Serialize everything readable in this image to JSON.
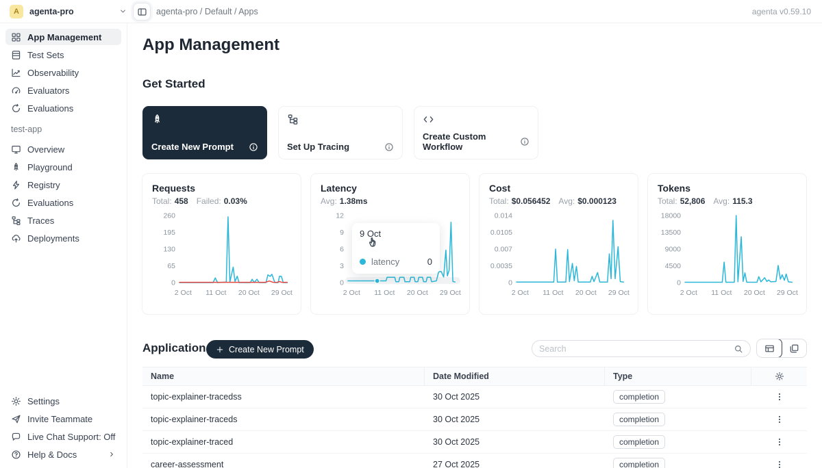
{
  "colors": {
    "accent": "#2bb7d9",
    "danger": "#e8473f",
    "navy": "#1c2b3a",
    "avatar_bg": "#f9e7a0"
  },
  "topbar": {
    "workspace": "agenta-pro",
    "avatar_initial": "A",
    "breadcrumb": "agenta-pro / Default / Apps",
    "version": "agenta v0.59.10"
  },
  "sidebar": {
    "main_items": [
      {
        "icon": "grid",
        "label": "App Management",
        "active": true
      },
      {
        "icon": "rows",
        "label": "Test Sets",
        "active": false
      },
      {
        "icon": "chart",
        "label": "Observability",
        "active": false
      },
      {
        "icon": "gauge",
        "label": "Evaluators",
        "active": false
      },
      {
        "icon": "refresh",
        "label": "Evaluations",
        "active": false
      }
    ],
    "project_label": "test-app",
    "project_items": [
      {
        "icon": "monitor",
        "label": "Overview"
      },
      {
        "icon": "rocket",
        "label": "Playground"
      },
      {
        "icon": "bolt",
        "label": "Registry"
      },
      {
        "icon": "refresh",
        "label": "Evaluations"
      },
      {
        "icon": "tree",
        "label": "Traces"
      },
      {
        "icon": "cloud-up",
        "label": "Deployments"
      }
    ],
    "footer_items": [
      {
        "icon": "gear",
        "label": "Settings"
      },
      {
        "icon": "send",
        "label": "Invite Teammate"
      },
      {
        "icon": "chat",
        "label": "Live Chat Support: Off"
      },
      {
        "icon": "help",
        "label": "Help & Docs",
        "trailing": "chevron-right"
      }
    ]
  },
  "page": {
    "title": "App Management",
    "get_started": {
      "title": "Get Started",
      "cards": [
        {
          "icon": "rocket",
          "label": "Create New Prompt",
          "dark": true
        },
        {
          "icon": "tree",
          "label": "Set Up Tracing",
          "dark": false
        },
        {
          "icon": "code",
          "label": "Create Custom Workflow",
          "dark": false
        }
      ]
    }
  },
  "tooltip": {
    "date": "9 Oct",
    "series": "latency",
    "value": "0"
  },
  "chart_data": [
    {
      "id": "requests",
      "type": "line",
      "title": "Requests",
      "stats": [
        {
          "label": "Total:",
          "value": "458"
        },
        {
          "label": "Failed:",
          "value": "0.03%"
        }
      ],
      "ymax": 260,
      "yticks": [
        "260",
        "195",
        "130",
        "65",
        "0"
      ],
      "xticks": [
        {
          "day": 2,
          "label": "2 Oct"
        },
        {
          "day": 11,
          "label": "11 Oct"
        },
        {
          "day": 20,
          "label": "20 Oct"
        },
        {
          "day": 29,
          "label": "29 Oct"
        }
      ],
      "series": [
        {
          "name": "requests",
          "color": "#2bb7d9",
          "points": [
            [
              1,
              0
            ],
            [
              10.2,
              0
            ],
            [
              10.8,
              18
            ],
            [
              11.4,
              0
            ],
            [
              13.8,
              2
            ],
            [
              14.3,
              255
            ],
            [
              14.8,
              2
            ],
            [
              15.7,
              60
            ],
            [
              16.2,
              4
            ],
            [
              16.8,
              25
            ],
            [
              17.3,
              0
            ],
            [
              20.4,
              0
            ],
            [
              20.9,
              13
            ],
            [
              21.5,
              0
            ],
            [
              22.2,
              13
            ],
            [
              22.8,
              0
            ],
            [
              24.7,
              0
            ],
            [
              25.2,
              30
            ],
            [
              25.8,
              24
            ],
            [
              26.3,
              32
            ],
            [
              27.1,
              0
            ],
            [
              28,
              0
            ],
            [
              28.4,
              25
            ],
            [
              28.9,
              24
            ],
            [
              29.4,
              0
            ],
            [
              30.5,
              0
            ]
          ]
        },
        {
          "name": "failed",
          "color": "#e8473f",
          "points": [
            [
              1,
              1
            ],
            [
              24.5,
              1
            ],
            [
              25.6,
              6
            ],
            [
              26.6,
              1
            ],
            [
              27.8,
              1
            ],
            [
              28.4,
              4
            ],
            [
              29,
              1
            ],
            [
              30.5,
              1
            ]
          ]
        }
      ]
    },
    {
      "id": "latency",
      "type": "line",
      "title": "Latency",
      "stats": [
        {
          "label": "Avg:",
          "value": "1.38ms"
        }
      ],
      "ymax": 12,
      "yticks": [
        "12",
        "9",
        "6",
        "3",
        "0"
      ],
      "xticks": [
        {
          "day": 2,
          "label": "2 Oct"
        },
        {
          "day": 11,
          "label": "11 Oct"
        },
        {
          "day": 20,
          "label": "20 Oct"
        },
        {
          "day": 29,
          "label": "29 Oct"
        }
      ],
      "hover_band": true,
      "marker": {
        "day": 9,
        "value": 0.3
      },
      "series": [
        {
          "name": "latency",
          "color": "#2bb7d9",
          "points": [
            [
              1,
              0.3
            ],
            [
              9,
              0.3
            ],
            [
              11.4,
              0.3
            ],
            [
              11.7,
              0.95
            ],
            [
              13.8,
              0.95
            ],
            [
              14.1,
              0.15
            ],
            [
              14.9,
              0.15
            ],
            [
              15.2,
              0.95
            ],
            [
              16.3,
              0.95
            ],
            [
              16.6,
              0.15
            ],
            [
              17.9,
              0.15
            ],
            [
              18.2,
              0.95
            ],
            [
              19.1,
              0.95
            ],
            [
              19.4,
              0.15
            ],
            [
              20.1,
              0.15
            ],
            [
              20.4,
              0.95
            ],
            [
              21.4,
              0.95
            ],
            [
              21.7,
              0.15
            ],
            [
              22.4,
              0.15
            ],
            [
              22.7,
              0.95
            ],
            [
              23.6,
              0.95
            ],
            [
              23.9,
              0.15
            ],
            [
              25.2,
              0.3
            ],
            [
              25.8,
              1.9
            ],
            [
              26.5,
              2.0
            ],
            [
              27.2,
              1.0
            ],
            [
              27.8,
              5.8
            ],
            [
              28.2,
              1.2
            ],
            [
              28.7,
              2.2
            ],
            [
              29.2,
              10.8
            ],
            [
              29.7,
              0.2
            ],
            [
              30.3,
              0.1
            ]
          ]
        }
      ]
    },
    {
      "id": "cost",
      "type": "line",
      "title": "Cost",
      "stats": [
        {
          "label": "Total:",
          "value": "$0.056452"
        },
        {
          "label": "Avg:",
          "value": "$0.000123"
        }
      ],
      "ymax": 0.014,
      "yticks": [
        "0.014",
        "0.0105",
        "0.007",
        "0.0035",
        "0"
      ],
      "xticks": [
        {
          "day": 2,
          "label": "2 Oct"
        },
        {
          "day": 11,
          "label": "11 Oct"
        },
        {
          "day": 20,
          "label": "20 Oct"
        },
        {
          "day": 29,
          "label": "29 Oct"
        }
      ],
      "series": [
        {
          "name": "cost",
          "color": "#2bb7d9",
          "points": [
            [
              1,
              0.0001
            ],
            [
              11.2,
              0.0001
            ],
            [
              11.7,
              0.007
            ],
            [
              12.2,
              0.0001
            ],
            [
              14.5,
              0.0001
            ],
            [
              15,
              0.0069
            ],
            [
              15.5,
              0.0002
            ],
            [
              16.3,
              0.004
            ],
            [
              16.8,
              0.0004
            ],
            [
              17.4,
              0.0034
            ],
            [
              17.9,
              0.0001
            ],
            [
              21.2,
              0.0001
            ],
            [
              21.7,
              0.0013
            ],
            [
              22.2,
              0.0002
            ],
            [
              23.2,
              0.0021
            ],
            [
              23.8,
              0.0001
            ],
            [
              25.9,
              0.0001
            ],
            [
              26.4,
              0.006
            ],
            [
              26.9,
              0.0008
            ],
            [
              27.4,
              0.013
            ],
            [
              28,
              0.0008
            ],
            [
              28.8,
              0.0075
            ],
            [
              29.4,
              0.0002
            ],
            [
              30.3,
              0.0001
            ]
          ]
        }
      ]
    },
    {
      "id": "tokens",
      "type": "line",
      "title": "Tokens",
      "stats": [
        {
          "label": "Total:",
          "value": "52,806"
        },
        {
          "label": "Avg:",
          "value": "115.3"
        }
      ],
      "ymax": 18000,
      "yticks": [
        "18000",
        "13500",
        "9000",
        "4500",
        "0"
      ],
      "xticks": [
        {
          "day": 2,
          "label": "2 Oct"
        },
        {
          "day": 11,
          "label": "11 Oct"
        },
        {
          "day": 20,
          "label": "20 Oct"
        },
        {
          "day": 29,
          "label": "29 Oct"
        }
      ],
      "series": [
        {
          "name": "tokens",
          "color": "#2bb7d9",
          "points": [
            [
              1,
              100
            ],
            [
              11.2,
              100
            ],
            [
              11.7,
              5500
            ],
            [
              12.2,
              100
            ],
            [
              14.5,
              100
            ],
            [
              15,
              18000
            ],
            [
              15.5,
              200
            ],
            [
              16.4,
              12300
            ],
            [
              16.9,
              300
            ],
            [
              17.4,
              2600
            ],
            [
              17.9,
              100
            ],
            [
              20.7,
              100
            ],
            [
              21.2,
              1600
            ],
            [
              21.8,
              200
            ],
            [
              22.8,
              1300
            ],
            [
              23.4,
              300
            ],
            [
              23.9,
              700
            ],
            [
              24.5,
              200
            ],
            [
              25.9,
              300
            ],
            [
              26.5,
              4600
            ],
            [
              27.1,
              900
            ],
            [
              27.6,
              2100
            ],
            [
              28.2,
              600
            ],
            [
              28.7,
              2300
            ],
            [
              29.3,
              200
            ],
            [
              30.3,
              100
            ]
          ]
        }
      ]
    }
  ],
  "application": {
    "title": "Application",
    "create_button": "Create New Prompt",
    "search_placeholder": "Search",
    "table": {
      "columns": [
        "Name",
        "Date Modified",
        "Type"
      ],
      "rows": [
        {
          "name": "topic-explainer-tracedss",
          "date_modified": "30 Oct 2025",
          "type": "completion"
        },
        {
          "name": "topic-explainer-traceds",
          "date_modified": "30 Oct 2025",
          "type": "completion"
        },
        {
          "name": "topic-explainer-traced",
          "date_modified": "30 Oct 2025",
          "type": "completion"
        },
        {
          "name": "career-assessment",
          "date_modified": "27 Oct 2025",
          "type": "completion"
        }
      ]
    }
  }
}
